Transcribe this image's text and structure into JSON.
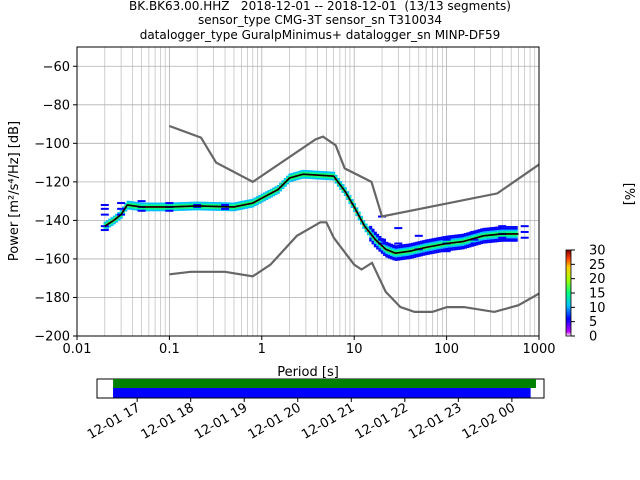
{
  "chart_data": [
    {
      "type": "line",
      "title_lines": [
        "BK.BK63.00.HHZ   2018-12-01 -- 2018-12-01  (13/13 segments)",
        "sensor_type CMG-3T sensor_sn T310034",
        "datalogger_type GuralpMinimus+ datalogger_sn MINP-DF59"
      ],
      "xlabel": "Period [s]",
      "ylabel": "Power [m²/s⁴/Hz] [dB]",
      "xscale": "log",
      "xlim": [
        0.01,
        1000
      ],
      "ylim": [
        -200,
        -50
      ],
      "xticks": [
        0.01,
        0.1,
        1,
        10,
        100,
        1000
      ],
      "xtick_labels": [
        "0.01",
        "0.1",
        "1",
        "10",
        "100",
        "1000"
      ],
      "yticks": [
        -200,
        -180,
        -160,
        -140,
        -120,
        -100,
        -80,
        -60
      ],
      "ytick_labels": [
        "−200",
        "−180",
        "−160",
        "−140",
        "−120",
        "−100",
        "−80",
        "−60"
      ],
      "grid": true,
      "series": [
        {
          "name": "NHNM",
          "color": "#666666",
          "points": [
            [
              0.1,
              -91
            ],
            [
              0.22,
              -97
            ],
            [
              0.32,
              -110
            ],
            [
              0.8,
              -120
            ],
            [
              3.8,
              -98
            ],
            [
              4.6,
              -96.5
            ],
            [
              6.3,
              -101
            ],
            [
              7.9,
              -113
            ],
            [
              15.4,
              -120
            ],
            [
              20,
              -138
            ],
            [
              354,
              -126
            ],
            [
              1000,
              -111
            ]
          ]
        },
        {
          "name": "NLNM",
          "color": "#666666",
          "points": [
            [
              0.1,
              -168
            ],
            [
              0.17,
              -166.7
            ],
            [
              0.4,
              -166.7
            ],
            [
              0.8,
              -169
            ],
            [
              1.24,
              -163
            ],
            [
              2.4,
              -148
            ],
            [
              4.3,
              -141
            ],
            [
              5,
              -141
            ],
            [
              6,
              -149
            ],
            [
              10,
              -163
            ],
            [
              12,
              -165.5
            ],
            [
              15.6,
              -162
            ],
            [
              21.9,
              -177
            ],
            [
              31.6,
              -185
            ],
            [
              45,
              -187.5
            ],
            [
              70,
              -187.5
            ],
            [
              101,
              -185
            ],
            [
              154,
              -185
            ],
            [
              328,
              -187.5
            ],
            [
              600,
              -184
            ],
            [
              1000,
              -178
            ]
          ]
        },
        {
          "name": "PPD mode",
          "color": "#000000",
          "points": [
            [
              0.02,
              -143
            ],
            [
              0.025,
              -140
            ],
            [
              0.03,
              -137
            ],
            [
              0.035,
              -132
            ],
            [
              0.05,
              -133
            ],
            [
              0.1,
              -133
            ],
            [
              0.2,
              -132.5
            ],
            [
              0.5,
              -133
            ],
            [
              0.8,
              -131
            ],
            [
              1,
              -128.5
            ],
            [
              1.5,
              -124
            ],
            [
              2,
              -118
            ],
            [
              2.8,
              -116
            ],
            [
              4,
              -116.5
            ],
            [
              6,
              -117
            ],
            [
              8,
              -125
            ],
            [
              10,
              -133
            ],
            [
              13,
              -143
            ],
            [
              17,
              -150
            ],
            [
              22,
              -155
            ],
            [
              28,
              -157
            ],
            [
              40,
              -156
            ],
            [
              60,
              -154
            ],
            [
              100,
              -152
            ],
            [
              150,
              -151
            ],
            [
              250,
              -148
            ],
            [
              400,
              -147
            ],
            [
              600,
              -147
            ]
          ]
        }
      ],
      "histogram_columns": [
        {
          "period": 0.02,
          "values": [
            -132,
            -134,
            -137,
            -143,
            -145
          ]
        },
        {
          "period": 0.03,
          "values": [
            -131,
            -134,
            -137
          ]
        },
        {
          "period": 0.05,
          "values": [
            -130,
            -133,
            -135
          ]
        },
        {
          "period": 0.1,
          "values": [
            -131,
            -133,
            -135
          ]
        },
        {
          "period": 0.2,
          "values": [
            -132,
            -133
          ]
        },
        {
          "period": 0.4,
          "values": [
            -132,
            -134
          ]
        },
        {
          "period": 20,
          "values": [
            -138,
            -150,
            -152
          ]
        },
        {
          "period": 30,
          "values": [
            -144,
            -152,
            -160
          ]
        },
        {
          "period": 50,
          "values": [
            -148,
            -155,
            -158
          ]
        },
        {
          "period": 100,
          "values": [
            -150,
            -152,
            -156
          ]
        },
        {
          "period": 200,
          "values": [
            -146,
            -150,
            -152
          ]
        },
        {
          "period": 400,
          "values": [
            -143,
            -147,
            -149
          ]
        },
        {
          "period": 700,
          "values": [
            -143,
            -146,
            -149
          ]
        }
      ],
      "colorbar": {
        "label": "[%]",
        "min": 0,
        "max": 30,
        "ticks": [
          0,
          5,
          10,
          15,
          20,
          25,
          30
        ],
        "tick_labels": [
          "0",
          "5",
          "10",
          "15",
          "20",
          "25",
          "30"
        ]
      }
    },
    {
      "type": "timeline",
      "tick_labels": [
        "12-01 17",
        "12-01 18",
        "12-01 19",
        "12-01 20",
        "12-01 21",
        "12-01 22",
        "12-01 23",
        "12-02 00"
      ],
      "bars": [
        {
          "color": "#008000",
          "start_hour": 16.55,
          "end_hour": 24.45
        },
        {
          "color": "#0000ff",
          "start_hour": 16.55,
          "end_hour": 24.35
        }
      ],
      "xlim_hours": [
        16.25,
        24.6
      ]
    }
  ]
}
